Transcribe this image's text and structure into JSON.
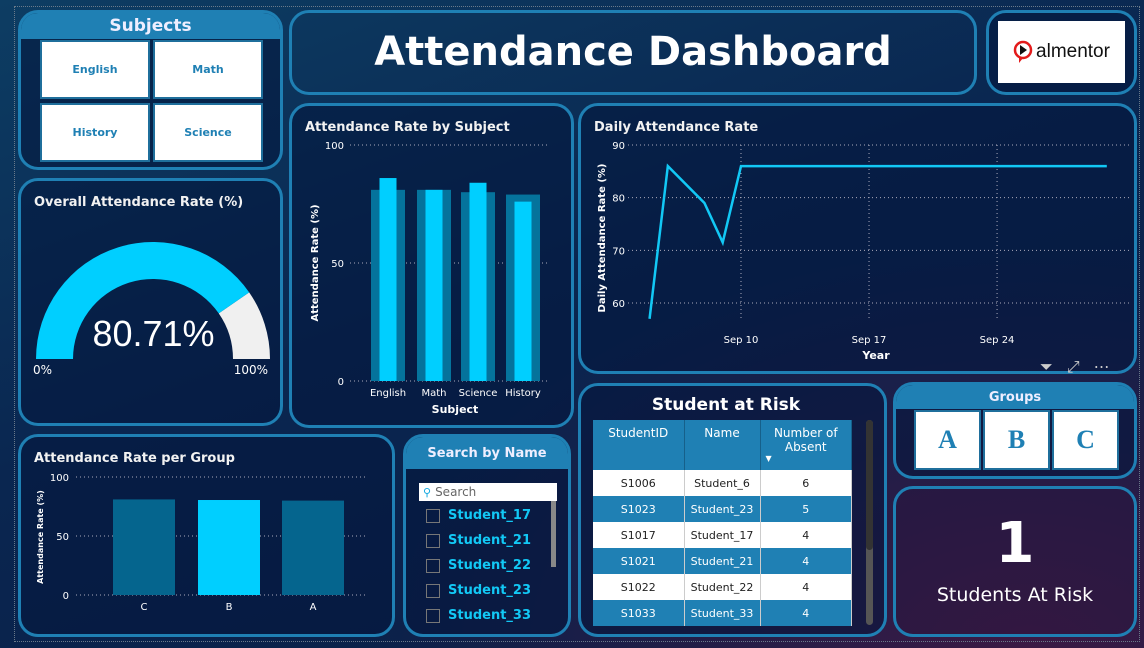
{
  "header": {
    "title": "Attendance Dashboard",
    "logo_text": "almentor"
  },
  "subjects": {
    "title": "Subjects",
    "items": [
      "English",
      "Math",
      "History",
      "Science"
    ]
  },
  "gauge": {
    "title": "Overall Attendance Rate (%)",
    "value": 80.71,
    "value_label": "80.71%",
    "min_label": "0%",
    "max_label": "100%",
    "fill_color": "#00cfff",
    "rest_color": "#f0f0f0"
  },
  "subject_chart": {
    "title": "Attendance Rate by Subject"
  },
  "daily_chart": {
    "title": "Daily Attendance Rate",
    "icons": [
      "filter-icon",
      "focus-mode-icon",
      "more-options-icon"
    ]
  },
  "group_chart": {
    "title": "Attendance Rate per Group"
  },
  "search": {
    "title": "Search by Name",
    "placeholder": "Search",
    "items": [
      "Student_17",
      "Student_21",
      "Student_22",
      "Student_23",
      "Student_33"
    ]
  },
  "risk_table": {
    "title": "Student at Risk",
    "columns": [
      "StudentID",
      "Name",
      "Number of Absent"
    ],
    "rows": [
      [
        "S1006",
        "Student_6",
        "6"
      ],
      [
        "S1023",
        "Student_23",
        "5"
      ],
      [
        "S1017",
        "Student_17",
        "4"
      ],
      [
        "S1021",
        "Student_21",
        "4"
      ],
      [
        "S1022",
        "Student_22",
        "4"
      ],
      [
        "S1033",
        "Student_33",
        "4"
      ]
    ]
  },
  "groups": {
    "title": "Groups",
    "items": [
      "A",
      "B",
      "C"
    ]
  },
  "kpi": {
    "value": "1",
    "label": "Students At Risk"
  },
  "chart_data": [
    {
      "type": "bar",
      "title": "Attendance Rate by Subject",
      "xlabel": "Subject",
      "ylabel": "Attendance Rate (%)",
      "ylim": [
        0,
        100
      ],
      "yticks": [
        "0",
        "50",
        "100"
      ],
      "categories": [
        "English",
        "Math",
        "Science",
        "History"
      ],
      "series": [
        {
          "values": [
            81,
            81,
            80,
            79
          ]
        },
        {
          "values": [
            86,
            81,
            84,
            76
          ]
        }
      ],
      "colors": [
        "#05739c",
        "#00cfff"
      ],
      "grid": true
    },
    {
      "type": "line",
      "title": "Daily Attendance Rate",
      "xlabel": "Year",
      "ylabel": "Daily Attendance Rate (%)",
      "ylim": [
        57,
        90
      ],
      "yticks": [
        "60",
        "70",
        "80",
        "90"
      ],
      "xticks": [
        "Sep 10",
        "Sep 17",
        "Sep 24"
      ],
      "x": [
        "Sep 5",
        "Sep 6",
        "Sep 8",
        "Sep 9",
        "Sep 10",
        "Sep 30"
      ],
      "y": [
        57,
        86,
        79,
        71.5,
        86,
        86
      ],
      "color": "#12c8f5",
      "grid": true
    },
    {
      "type": "bar",
      "title": "Attendance Rate per Group",
      "ylabel": "Attendance Rate (%)",
      "ylim": [
        0,
        100
      ],
      "yticks": [
        "0",
        "50",
        "100"
      ],
      "categories": [
        "C",
        "B",
        "A"
      ],
      "values": [
        81,
        80.5,
        80
      ],
      "highlight": "B",
      "colors": [
        "#05658e",
        "#00cfff"
      ],
      "grid": true
    }
  ]
}
